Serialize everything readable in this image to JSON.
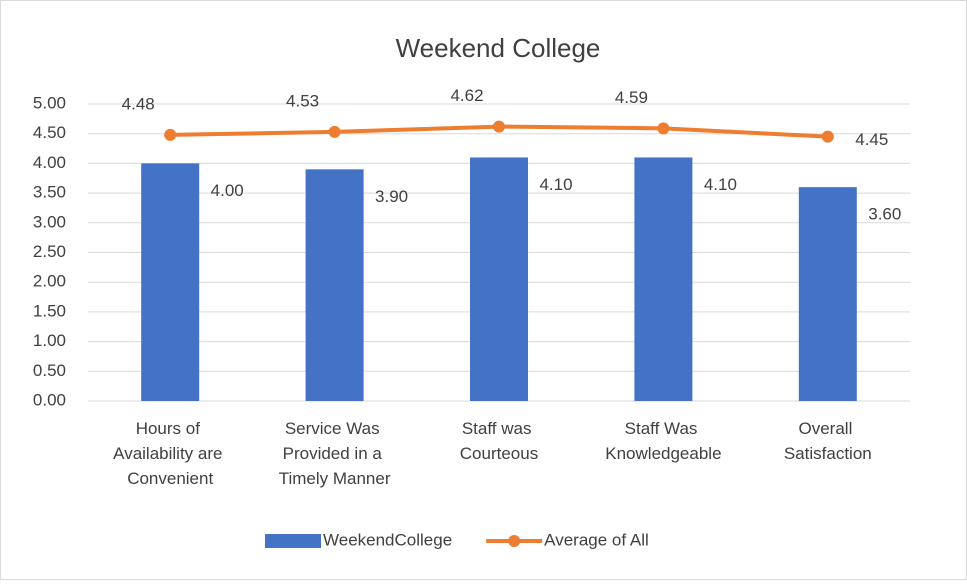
{
  "chart_data": {
    "type": "bar",
    "title": "Weekend College",
    "categories": [
      "Hours of Availability are Convenient",
      "Service Was Provided in a Timely Manner",
      "Staff was Courteous",
      "Staff Was Knowledgeable",
      "Overall Satisfaction"
    ],
    "series": [
      {
        "name": "WeekendCollege",
        "type": "bar",
        "color": "#4472c4",
        "values": [
          4.0,
          3.9,
          4.1,
          4.1,
          3.6
        ],
        "value_labels": [
          "4.00",
          "3.90",
          "4.10",
          "4.10",
          "3.60"
        ]
      },
      {
        "name": "Average of All",
        "type": "line",
        "color": "#ed7d31",
        "values": [
          4.48,
          4.53,
          4.62,
          4.59,
          4.45
        ],
        "value_labels": [
          "4.48",
          "4.53",
          "4.62",
          "4.59",
          "4.45"
        ]
      }
    ],
    "ylim": [
      0,
      5
    ],
    "yticks": [
      {
        "value": 0,
        "label": "0.00"
      },
      {
        "value": 0.5,
        "label": "0.50"
      },
      {
        "value": 1,
        "label": "1.00"
      },
      {
        "value": 1.5,
        "label": "1.50"
      },
      {
        "value": 2,
        "label": "2.00"
      },
      {
        "value": 2.5,
        "label": "2.50"
      },
      {
        "value": 3,
        "label": "3.00"
      },
      {
        "value": 3.5,
        "label": "3.50"
      },
      {
        "value": 4,
        "label": "4.00"
      },
      {
        "value": 4.5,
        "label": "4.50"
      },
      {
        "value": 5,
        "label": "5.00"
      }
    ],
    "grid": true,
    "legend": "bottom"
  }
}
